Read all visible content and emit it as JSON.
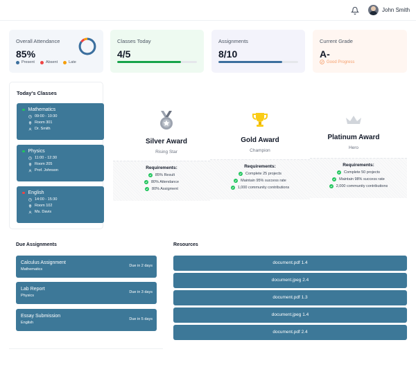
{
  "header": {
    "user_name": "John Smith",
    "bell_icon": "bell-icon",
    "avatar": "user-avatar"
  },
  "stats": {
    "attendance": {
      "label": "Overall Attendance",
      "value": "85%",
      "present": 85,
      "legend": [
        "Present",
        "Absent",
        "Late"
      ],
      "colors": {
        "present": "#3b6f9e",
        "absent": "#ef4444",
        "late": "#f59e0b"
      }
    },
    "classes_today": {
      "label": "Classes Today",
      "value": "4/5",
      "progress": 0.8,
      "color": "#16a34a"
    },
    "assignments": {
      "label": "Assignments",
      "value": "8/10",
      "progress": 0.8,
      "color": "#3b6f9e"
    },
    "grade": {
      "label": "Current Grade",
      "value": "A-",
      "note": "Good Progress",
      "color": "#f59e6b"
    }
  },
  "todays_classes": {
    "title": "Today's Classes",
    "items": [
      {
        "name": "Mathematics",
        "time": "09:00 - 10:30",
        "room": "Room 301",
        "teacher": "Dr. Smith",
        "status_color": "#22c55e"
      },
      {
        "name": "Physics",
        "time": "11:00 - 12:30",
        "room": "Room 205",
        "teacher": "Prof. Johnson",
        "status_color": "#22c55e"
      },
      {
        "name": "English",
        "time": "14:00 - 15:30",
        "room": "Room 102",
        "teacher": "Ms. Davis",
        "status_color": "#ef4444"
      }
    ]
  },
  "awards": [
    {
      "title": "Silver Award",
      "subtitle": "Rising Star",
      "icon": "medal-icon",
      "requirements_title": "Requirements:",
      "requirements": [
        "85% Result",
        "80% Attendance",
        "80% Assigment"
      ]
    },
    {
      "title": "Gold Award",
      "subtitle": "Champion",
      "icon": "trophy-icon",
      "requirements_title": "Requirements:",
      "requirements": [
        "Complete 25 projects",
        "Maintain 95% success rate",
        "1,000 community contributions"
      ]
    },
    {
      "title": "Platinum Award",
      "subtitle": "Hero",
      "icon": "crown-icon",
      "requirements_title": "Requirements:",
      "requirements": [
        "Complete 50 projects",
        "Maintain 98% success rate",
        "2,000 community contributions"
      ]
    }
  ],
  "due_assignments": {
    "title": "Due Assignments",
    "items": [
      {
        "title": "Calculus Assignment",
        "subject": "Mathematics",
        "due": "Due in 2 days"
      },
      {
        "title": "Lab Report",
        "subject": "Physics",
        "due": "Due in 3 days"
      },
      {
        "title": "Essay Submission",
        "subject": "English",
        "due": "Due in 5 days"
      }
    ]
  },
  "resources": {
    "title": "Resources",
    "items": [
      "document.pdf 1.4",
      "document.jpeg 2.4",
      "document.pdf 1.3",
      "document.jpeg 1.4",
      "document.pdf 2.4"
    ]
  }
}
